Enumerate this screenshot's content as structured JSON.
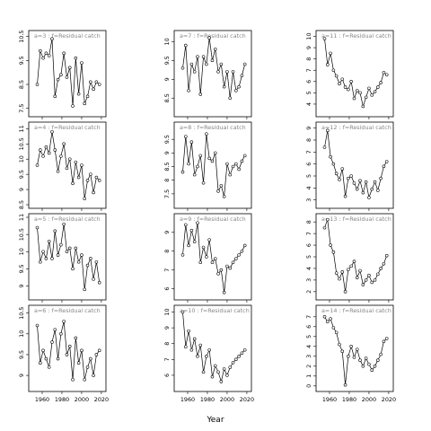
{
  "chart_data": {
    "type": "scatter",
    "xlabel": "Year",
    "xticks": [
      1960,
      1980,
      2000,
      2020
    ],
    "xlim": [
      1950,
      2021
    ],
    "line_color": "#000000",
    "point_style": "open-circle",
    "title_color": "#888888",
    "panels": [
      {
        "title": "a=3  :  f=Residual catch",
        "ylim": [
          7.3,
          10.6
        ],
        "yticks": [
          7.5,
          8.5,
          9.5,
          10.5
        ],
        "x": [
          1955,
          1958,
          1961,
          1964,
          1967,
          1970,
          1973,
          1976,
          1979,
          1982,
          1985,
          1988,
          1991,
          1994,
          1997,
          2000,
          2003,
          2006,
          2009,
          2012,
          2015,
          2018
        ],
        "y": [
          8.5,
          9.9,
          9.6,
          9.8,
          9.7,
          10.4,
          8.0,
          8.7,
          8.9,
          9.8,
          8.8,
          9.2,
          7.6,
          9.6,
          8.1,
          9.4,
          7.7,
          8.0,
          8.6,
          8.3,
          8.6,
          8.5
        ]
      },
      {
        "title": "a=7  :  f=Residual catch",
        "ylim": [
          8.1,
          10.2
        ],
        "yticks": [
          8.5,
          9.0,
          9.5,
          10.0
        ],
        "x": [
          1955,
          1958,
          1961,
          1964,
          1967,
          1970,
          1973,
          1976,
          1979,
          1982,
          1985,
          1988,
          1991,
          1994,
          1997,
          2000,
          2003,
          2006,
          2009,
          2012,
          2015,
          2018
        ],
        "y": [
          9.3,
          9.9,
          8.7,
          9.4,
          9.2,
          9.6,
          8.6,
          9.6,
          9.4,
          10.1,
          9.5,
          9.8,
          9.2,
          9.4,
          8.8,
          9.2,
          8.5,
          9.2,
          8.7,
          8.8,
          9.1,
          9.4
        ]
      },
      {
        "title": "a=11  :  f=Residual catch",
        "ylim": [
          3.2,
          10.2
        ],
        "yticks": [
          4,
          5,
          6,
          7,
          8,
          9,
          10
        ],
        "x": [
          1955,
          1958,
          1961,
          1964,
          1967,
          1970,
          1973,
          1976,
          1979,
          1982,
          1985,
          1988,
          1991,
          1994,
          1997,
          2000,
          2003,
          2006,
          2009,
          2012,
          2015,
          2018
        ],
        "y": [
          9.8,
          7.5,
          8.5,
          7.0,
          6.5,
          5.8,
          6.2,
          5.5,
          5.3,
          6.0,
          4.5,
          5.2,
          5.0,
          3.8,
          4.6,
          5.4,
          4.8,
          5.1,
          5.5,
          5.9,
          6.8,
          6.6
        ]
      },
      {
        "title": "a=4  :  f=Residual catch",
        "ylim": [
          8.5,
          11.1
        ],
        "yticks": [
          8.5,
          9.0,
          9.5,
          10.0,
          10.5,
          11.0
        ],
        "x": [
          1955,
          1958,
          1961,
          1964,
          1967,
          1970,
          1973,
          1976,
          1979,
          1982,
          1985,
          1988,
          1991,
          1994,
          1997,
          2000,
          2003,
          2006,
          2009,
          2012,
          2015,
          2018
        ],
        "y": [
          9.8,
          10.3,
          10.1,
          10.4,
          10.2,
          10.9,
          10.3,
          9.6,
          10.1,
          10.5,
          9.7,
          10.0,
          9.2,
          9.9,
          9.4,
          9.8,
          8.7,
          9.3,
          9.5,
          8.9,
          9.4,
          9.3
        ]
      },
      {
        "title": "a=8  :  f=Residual catch",
        "ylim": [
          7.1,
          10.0
        ],
        "yticks": [
          7.5,
          8.0,
          8.5,
          9.0,
          9.5
        ],
        "x": [
          1955,
          1958,
          1961,
          1964,
          1967,
          1970,
          1973,
          1976,
          1979,
          1982,
          1985,
          1988,
          1991,
          1994,
          1997,
          2000,
          2003,
          2006,
          2009,
          2012,
          2015,
          2018
        ],
        "y": [
          8.3,
          9.6,
          8.6,
          9.4,
          8.2,
          8.5,
          8.9,
          7.9,
          9.7,
          8.8,
          8.7,
          9.0,
          7.6,
          7.8,
          7.4,
          8.6,
          8.2,
          8.5,
          8.6,
          8.4,
          8.7,
          8.9
        ]
      },
      {
        "title": "a=12  :  f=Residual catch",
        "ylim": [
          2.6,
          9.2
        ],
        "yticks": [
          3,
          4,
          5,
          6,
          7,
          8,
          9
        ],
        "x": [
          1955,
          1958,
          1961,
          1964,
          1967,
          1970,
          1973,
          1976,
          1979,
          1982,
          1985,
          1988,
          1991,
          1994,
          1997,
          2000,
          2003,
          2006,
          2009,
          2012,
          2015,
          2018
        ],
        "y": [
          7.4,
          8.8,
          6.6,
          6.0,
          5.2,
          4.7,
          5.6,
          3.3,
          4.8,
          5.0,
          4.4,
          3.9,
          4.6,
          3.6,
          4.5,
          3.2,
          3.9,
          4.5,
          3.8,
          4.8,
          5.8,
          6.2
        ]
      },
      {
        "title": "a=5  :  f=Residual catch",
        "ylim": [
          8.7,
          11.0
        ],
        "yticks": [
          9.0,
          9.5,
          10.0,
          10.5,
          11.0
        ],
        "x": [
          1955,
          1958,
          1961,
          1964,
          1967,
          1970,
          1973,
          1976,
          1979,
          1982,
          1985,
          1988,
          1991,
          1994,
          1997,
          2000,
          2003,
          2006,
          2009,
          2012,
          2015,
          2018
        ],
        "y": [
          10.7,
          9.7,
          10.0,
          9.8,
          10.3,
          9.8,
          10.6,
          9.9,
          10.2,
          10.8,
          10.0,
          10.1,
          9.5,
          10.1,
          9.7,
          9.9,
          8.9,
          9.6,
          9.8,
          9.2,
          9.7,
          9.1
        ]
      },
      {
        "title": "a=9  :  f=Residual catch",
        "ylim": [
          5.6,
          9.8
        ],
        "yticks": [
          6,
          7,
          8,
          9
        ],
        "x": [
          1955,
          1958,
          1961,
          1964,
          1967,
          1970,
          1973,
          1976,
          1979,
          1982,
          1985,
          1988,
          1991,
          1994,
          1997,
          2000,
          2003,
          2006,
          2009,
          2012,
          2015,
          2018
        ],
        "y": [
          7.8,
          9.4,
          8.3,
          9.1,
          8.5,
          9.5,
          7.4,
          8.2,
          7.7,
          8.6,
          7.4,
          7.6,
          6.8,
          7.0,
          5.8,
          7.2,
          7.1,
          7.4,
          7.6,
          7.8,
          8.0,
          8.3
        ]
      },
      {
        "title": "a=13  :  f=Residual catch",
        "ylim": [
          1.6,
          8.4
        ],
        "yticks": [
          2,
          3,
          4,
          5,
          6,
          7,
          8
        ],
        "x": [
          1955,
          1958,
          1961,
          1964,
          1967,
          1970,
          1973,
          1976,
          1979,
          1982,
          1985,
          1988,
          1991,
          1994,
          1997,
          2000,
          2003,
          2006,
          2009,
          2012,
          2015,
          2018
        ],
        "y": [
          7.5,
          8.2,
          6.0,
          5.4,
          3.6,
          3.1,
          3.7,
          2.0,
          3.9,
          4.2,
          4.6,
          3.2,
          3.8,
          2.6,
          3.0,
          3.4,
          2.8,
          3.0,
          3.5,
          4.0,
          4.4,
          5.1
        ]
      },
      {
        "title": "a=6  :  f=Residual catch",
        "ylim": [
          8.7,
          10.6
        ],
        "yticks": [
          9.0,
          9.5,
          10.0,
          10.5
        ],
        "x": [
          1955,
          1958,
          1961,
          1964,
          1967,
          1970,
          1973,
          1976,
          1979,
          1982,
          1985,
          1988,
          1991,
          1994,
          1997,
          2000,
          2003,
          2006,
          2009,
          2012,
          2015,
          2018
        ],
        "y": [
          10.2,
          9.3,
          9.6,
          9.4,
          9.2,
          9.8,
          10.1,
          9.4,
          10.0,
          10.3,
          9.5,
          9.7,
          8.9,
          9.9,
          9.3,
          9.6,
          8.9,
          9.2,
          9.4,
          9.0,
          9.5,
          9.6
        ]
      },
      {
        "title": "a=10  :  f=Residual catch",
        "ylim": [
          5.2,
          10.2
        ],
        "yticks": [
          6,
          7,
          8,
          9,
          10
        ],
        "x": [
          1955,
          1958,
          1961,
          1964,
          1967,
          1970,
          1973,
          1976,
          1979,
          1982,
          1985,
          1988,
          1991,
          1994,
          1997,
          2000,
          2003,
          2006,
          2009,
          2012,
          2015,
          2018
        ],
        "y": [
          10.0,
          7.8,
          8.8,
          7.6,
          8.3,
          7.2,
          7.9,
          6.2,
          7.2,
          7.6,
          5.9,
          6.6,
          6.2,
          5.6,
          6.4,
          6.0,
          6.5,
          6.8,
          7.0,
          7.2,
          7.4,
          7.6
        ]
      },
      {
        "title": "a=14  :  f=Residual catch",
        "ylim": [
          -0.2,
          7.8
        ],
        "yticks": [
          0,
          1,
          2,
          3,
          4,
          5,
          6,
          7
        ],
        "x": [
          1955,
          1958,
          1961,
          1964,
          1967,
          1970,
          1973,
          1976,
          1979,
          1982,
          1985,
          1988,
          1991,
          1994,
          1997,
          2000,
          2003,
          2006,
          2009,
          2012,
          2015,
          2018
        ],
        "y": [
          7.0,
          6.5,
          6.8,
          5.9,
          5.4,
          4.2,
          3.5,
          0.1,
          3.0,
          4.0,
          2.9,
          3.7,
          2.6,
          2.0,
          2.8,
          2.2,
          1.6,
          2.0,
          2.6,
          3.2,
          4.5,
          4.8
        ]
      }
    ]
  }
}
